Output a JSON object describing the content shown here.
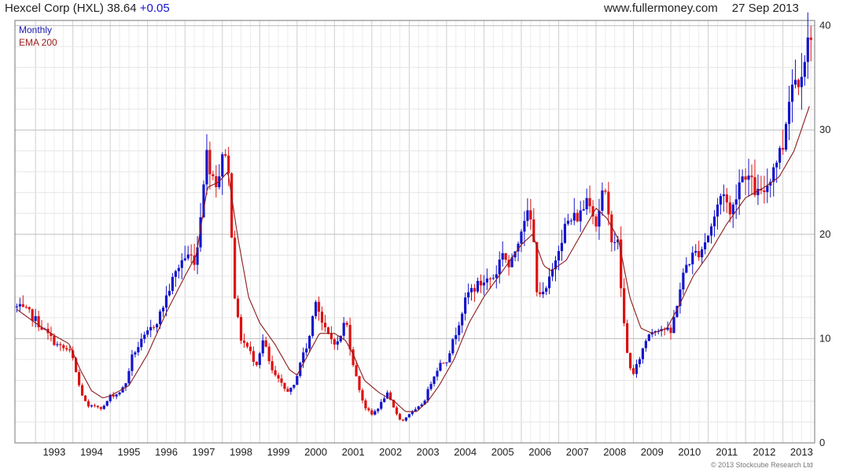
{
  "header": {
    "title": "Hexcel Corp (HXL) 38.64",
    "change": "+0.05",
    "site": "www.fullermoney.com",
    "date": "27 Sep 2013"
  },
  "footer": {
    "copyright": "© 2013 Stockcube Research Ltd"
  },
  "colors": {
    "up": "#1414cc",
    "down": "#dd1111",
    "ema": "#8b1a1a",
    "grid": "#d9d9d9",
    "legend_monthly": "#1a1ab0",
    "legend_ema": "#a02020"
  },
  "chart_data": {
    "type": "candlestick",
    "interval": "Monthly",
    "legend": [
      "Monthly",
      "EMA 200"
    ],
    "x_tick_labels": [
      "1993",
      "1994",
      "1995",
      "1996",
      "1997",
      "1998",
      "1999",
      "2000",
      "2001",
      "2002",
      "2003",
      "2004",
      "2005",
      "2006",
      "2007",
      "2008",
      "2009",
      "2010",
      "2011",
      "2012",
      "2013"
    ],
    "y_ticks": [
      0,
      10,
      20,
      30,
      40
    ],
    "ylim": [
      0,
      40.5
    ],
    "xlim": [
      1992.45,
      2013.85
    ],
    "grid": true,
    "close_anchors": [
      [
        1992.5,
        13.0
      ],
      [
        1992.8,
        12.5
      ],
      [
        1993.0,
        11.8
      ],
      [
        1993.3,
        10.5
      ],
      [
        1993.6,
        9.3
      ],
      [
        1993.9,
        8.8
      ],
      [
        1994.0,
        8.0
      ],
      [
        1994.2,
        5.0
      ],
      [
        1994.4,
        3.4
      ],
      [
        1994.6,
        3.6
      ],
      [
        1994.8,
        3.3
      ],
      [
        1995.0,
        4.5
      ],
      [
        1995.2,
        4.7
      ],
      [
        1995.4,
        5.5
      ],
      [
        1995.6,
        8.5
      ],
      [
        1995.8,
        9.5
      ],
      [
        1996.0,
        10.5
      ],
      [
        1996.3,
        12.0
      ],
      [
        1996.6,
        15.0
      ],
      [
        1996.9,
        17.5
      ],
      [
        1997.1,
        18.0
      ],
      [
        1997.3,
        17.5
      ],
      [
        1997.5,
        25.5
      ],
      [
        1997.6,
        28.0
      ],
      [
        1997.7,
        26.0
      ],
      [
        1997.85,
        25.0
      ],
      [
        1998.0,
        27.0
      ],
      [
        1998.1,
        28.5
      ],
      [
        1998.2,
        24.0
      ],
      [
        1998.35,
        13.0
      ],
      [
        1998.5,
        10.0
      ],
      [
        1998.7,
        9.0
      ],
      [
        1998.9,
        7.5
      ],
      [
        1999.1,
        10.0
      ],
      [
        1999.3,
        7.0
      ],
      [
        1999.5,
        6.0
      ],
      [
        1999.7,
        5.0
      ],
      [
        1999.9,
        5.2
      ],
      [
        2000.1,
        8.0
      ],
      [
        2000.3,
        9.5
      ],
      [
        2000.5,
        14.0
      ],
      [
        2000.7,
        11.0
      ],
      [
        2000.9,
        10.0
      ],
      [
        2001.1,
        9.5
      ],
      [
        2001.3,
        12.0
      ],
      [
        2001.45,
        8.5
      ],
      [
        2001.6,
        6.0
      ],
      [
        2001.8,
        3.5
      ],
      [
        2002.0,
        2.7
      ],
      [
        2002.2,
        3.5
      ],
      [
        2002.4,
        4.8
      ],
      [
        2002.6,
        3.2
      ],
      [
        2002.8,
        2.0
      ],
      [
        2003.0,
        2.8
      ],
      [
        2003.2,
        3.2
      ],
      [
        2003.4,
        4.0
      ],
      [
        2003.6,
        6.0
      ],
      [
        2003.8,
        7.5
      ],
      [
        2004.0,
        8.0
      ],
      [
        2004.2,
        10.0
      ],
      [
        2004.4,
        12.5
      ],
      [
        2004.6,
        14.5
      ],
      [
        2004.8,
        15.0
      ],
      [
        2005.0,
        15.5
      ],
      [
        2005.3,
        16.0
      ],
      [
        2005.5,
        18.5
      ],
      [
        2005.7,
        16.5
      ],
      [
        2005.9,
        19.5
      ],
      [
        2006.1,
        22.0
      ],
      [
        2006.3,
        21.0
      ],
      [
        2006.4,
        15.0
      ],
      [
        2006.6,
        14.0
      ],
      [
        2006.8,
        16.0
      ],
      [
        2007.0,
        19.0
      ],
      [
        2007.2,
        21.0
      ],
      [
        2007.4,
        21.5
      ],
      [
        2007.6,
        22.0
      ],
      [
        2007.8,
        24.0
      ],
      [
        2008.0,
        21.0
      ],
      [
        2008.2,
        24.5
      ],
      [
        2008.4,
        20.0
      ],
      [
        2008.6,
        19.0
      ],
      [
        2008.7,
        13.0
      ],
      [
        2008.85,
        8.0
      ],
      [
        2009.0,
        6.5
      ],
      [
        2009.2,
        8.5
      ],
      [
        2009.4,
        10.5
      ],
      [
        2009.6,
        11.0
      ],
      [
        2009.8,
        11.0
      ],
      [
        2010.0,
        10.5
      ],
      [
        2010.2,
        14.0
      ],
      [
        2010.4,
        17.0
      ],
      [
        2010.6,
        18.0
      ],
      [
        2010.8,
        18.5
      ],
      [
        2011.0,
        20.0
      ],
      [
        2011.2,
        22.0
      ],
      [
        2011.4,
        24.5
      ],
      [
        2011.6,
        21.5
      ],
      [
        2011.8,
        25.0
      ],
      [
        2012.0,
        26.0
      ],
      [
        2012.2,
        24.5
      ],
      [
        2012.4,
        23.5
      ],
      [
        2012.6,
        25.0
      ],
      [
        2012.8,
        27.0
      ],
      [
        2013.0,
        28.5
      ],
      [
        2013.2,
        34.5
      ],
      [
        2013.4,
        35.0
      ],
      [
        2013.6,
        37.5
      ],
      [
        2013.73,
        38.64
      ]
    ],
    "ema_anchors": [
      [
        1992.5,
        12.8
      ],
      [
        1993.0,
        11.5
      ],
      [
        1993.5,
        10.3
      ],
      [
        1993.9,
        9.5
      ],
      [
        1994.2,
        7.0
      ],
      [
        1994.5,
        5.0
      ],
      [
        1994.8,
        4.3
      ],
      [
        1995.0,
        4.5
      ],
      [
        1995.5,
        5.5
      ],
      [
        1996.0,
        8.5
      ],
      [
        1996.5,
        12.5
      ],
      [
        1997.0,
        16.0
      ],
      [
        1997.3,
        18.0
      ],
      [
        1997.6,
        24.5
      ],
      [
        1997.9,
        25.0
      ],
      [
        1998.15,
        26.0
      ],
      [
        1998.4,
        20.0
      ],
      [
        1998.7,
        14.0
      ],
      [
        1999.0,
        11.5
      ],
      [
        1999.4,
        9.5
      ],
      [
        1999.8,
        7.0
      ],
      [
        2000.0,
        6.5
      ],
      [
        2000.3,
        8.5
      ],
      [
        2000.6,
        10.5
      ],
      [
        2001.0,
        10.5
      ],
      [
        2001.3,
        9.8
      ],
      [
        2001.5,
        8.5
      ],
      [
        2001.8,
        6.0
      ],
      [
        2002.2,
        4.8
      ],
      [
        2002.6,
        4.0
      ],
      [
        2002.9,
        3.0
      ],
      [
        2003.2,
        3.0
      ],
      [
        2003.5,
        4.0
      ],
      [
        2003.8,
        5.5
      ],
      [
        2004.2,
        8.0
      ],
      [
        2004.6,
        11.5
      ],
      [
        2005.0,
        14.0
      ],
      [
        2005.5,
        16.5
      ],
      [
        2006.0,
        19.0
      ],
      [
        2006.3,
        20.0
      ],
      [
        2006.6,
        17.0
      ],
      [
        2006.8,
        16.5
      ],
      [
        2007.2,
        17.5
      ],
      [
        2007.6,
        20.0
      ],
      [
        2008.0,
        22.5
      ],
      [
        2008.3,
        21.5
      ],
      [
        2008.6,
        19.5
      ],
      [
        2008.9,
        14.0
      ],
      [
        2009.2,
        11.0
      ],
      [
        2009.5,
        10.5
      ],
      [
        2009.9,
        11.0
      ],
      [
        2010.2,
        13.0
      ],
      [
        2010.6,
        16.0
      ],
      [
        2011.0,
        18.0
      ],
      [
        2011.5,
        21.0
      ],
      [
        2012.0,
        23.5
      ],
      [
        2012.5,
        24.5
      ],
      [
        2012.9,
        25.5
      ],
      [
        2013.3,
        28.0
      ],
      [
        2013.73,
        32.5
      ]
    ]
  }
}
